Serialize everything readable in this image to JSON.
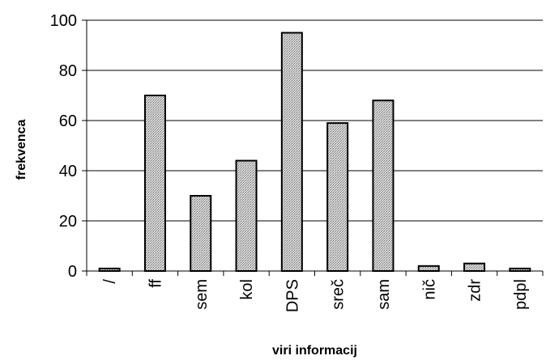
{
  "chart_data": {
    "type": "bar",
    "title": "",
    "xlabel": "viri informacij",
    "ylabel": "frekvenca",
    "categories": [
      "/",
      "ff",
      "sem",
      "kol",
      "DPS",
      "sreč",
      "sam",
      "nič",
      "zdr",
      "pdpl"
    ],
    "values": [
      1,
      70,
      30,
      44,
      95,
      59,
      68,
      2,
      3,
      1
    ],
    "ylim": [
      0,
      100
    ],
    "yticks": [
      0,
      20,
      40,
      60,
      80,
      100
    ],
    "grid": true,
    "legend": "none",
    "bar_color": "#bdbdbd",
    "bar_pattern": "dotted-gray"
  }
}
